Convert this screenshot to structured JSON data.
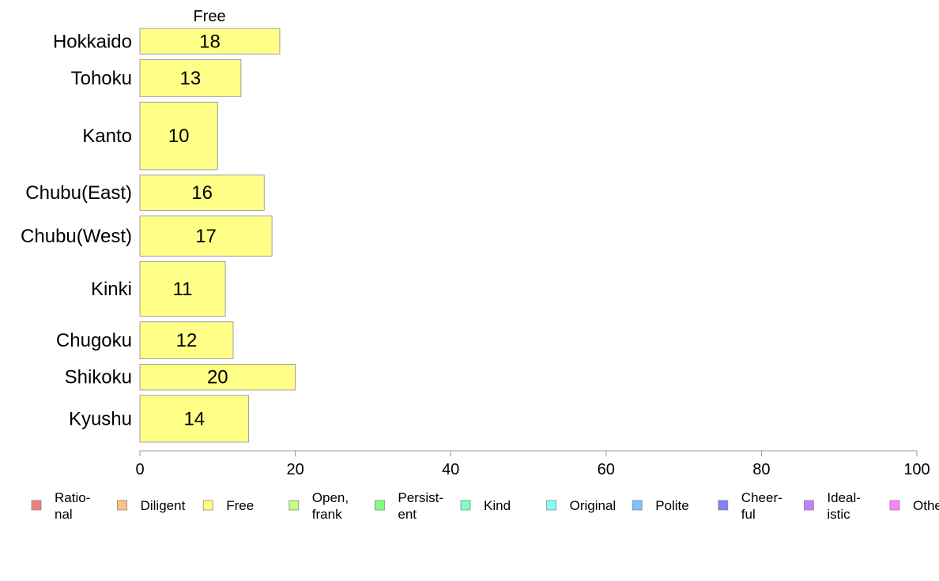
{
  "chart_data": {
    "type": "bar",
    "orientation": "horizontal",
    "title": "Free",
    "categories": [
      "Hokkaido",
      "Tohoku",
      "Kanto",
      "Chubu(East)",
      "Chubu(West)",
      "Kinki",
      "Chugoku",
      "Shikoku",
      "Kyushu"
    ],
    "values": [
      18,
      13,
      10,
      16,
      17,
      11,
      12,
      20,
      14
    ],
    "value_labels": [
      "18",
      "13",
      "10",
      "16",
      "17",
      "11",
      "12",
      "20",
      "14"
    ],
    "relative_widths": [
      0.8,
      1.15,
      2.1,
      1.1,
      1.25,
      1.7,
      1.15,
      0.8,
      1.45
    ],
    "xlim": [
      0,
      100
    ],
    "xticks": [
      0,
      20,
      40,
      60,
      80,
      100
    ],
    "xtick_labels": [
      "0",
      "20",
      "40",
      "60",
      "80",
      "100"
    ],
    "bar_color": "#ffff88",
    "bar_stroke": "#a0a0a0",
    "legend_position": "bottom",
    "legend": [
      {
        "lines": [
          "Ratio-",
          "nal"
        ],
        "color": "#f08080"
      },
      {
        "lines": [
          "Diligent"
        ],
        "color": "#ffc080"
      },
      {
        "lines": [
          "Free"
        ],
        "color": "#ffff80"
      },
      {
        "lines": [
          "Open,",
          "frank"
        ],
        "color": "#c0ff80"
      },
      {
        "lines": [
          "Persist-",
          "ent"
        ],
        "color": "#80ff80"
      },
      {
        "lines": [
          "Kind"
        ],
        "color": "#80ffc0"
      },
      {
        "lines": [
          "Original"
        ],
        "color": "#80ffff"
      },
      {
        "lines": [
          "Polite"
        ],
        "color": "#80c0ff"
      },
      {
        "lines": [
          "Cheer-",
          "ful"
        ],
        "color": "#8080ff"
      },
      {
        "lines": [
          "Ideal-",
          "istic"
        ],
        "color": "#c080ff"
      },
      {
        "lines": [
          "Othe"
        ],
        "color": "#ff80ff"
      }
    ]
  }
}
